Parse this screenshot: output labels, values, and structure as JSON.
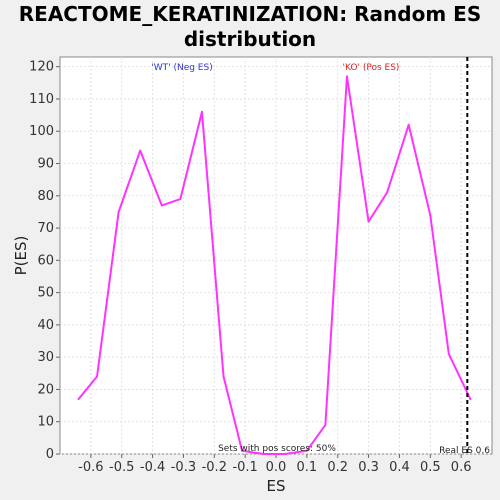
{
  "chart_data": {
    "type": "line",
    "title": "REACTOME_KERATINIZATION: Random ES distribution",
    "xlabel": "ES",
    "ylabel": "P(ES)",
    "xlim": [
      -0.7,
      0.7
    ],
    "ylim": [
      0,
      123
    ],
    "x_ticks": [
      "-0.6",
      "-0.5",
      "-0.4",
      "-0.3",
      "-0.2",
      "-0.1",
      "0.0",
      "0.1",
      "0.2",
      "0.3",
      "0.4",
      "0.5",
      "0.6"
    ],
    "y_ticks": [
      "0",
      "10",
      "20",
      "30",
      "40",
      "50",
      "60",
      "70",
      "80",
      "90",
      "100",
      "110",
      "120"
    ],
    "grid": true,
    "series": [
      {
        "color": "#ff33ff",
        "x": [
          -0.64,
          -0.58,
          -0.51,
          -0.44,
          -0.37,
          -0.31,
          -0.24,
          -0.17,
          -0.11,
          -0.04,
          0.03,
          0.1,
          0.16,
          0.23,
          0.3,
          0.36,
          0.43,
          0.5,
          0.56,
          0.63
        ],
        "y": [
          17,
          24,
          75,
          94,
          77,
          79,
          106,
          24,
          1,
          0,
          0,
          1,
          9,
          117,
          72,
          81,
          102,
          74,
          31,
          17
        ]
      }
    ],
    "real_es": {
      "value": 0.62,
      "label": "Real ES 0.6",
      "color": "#000000"
    },
    "annotations": {
      "neg_label": "'WT' (Neg ES)",
      "neg_color": "#3333cc",
      "pos_label": "'KO' (Pos ES)",
      "pos_color": "#dd2222",
      "sets_note": "Sets with pos scores: 50%"
    }
  }
}
